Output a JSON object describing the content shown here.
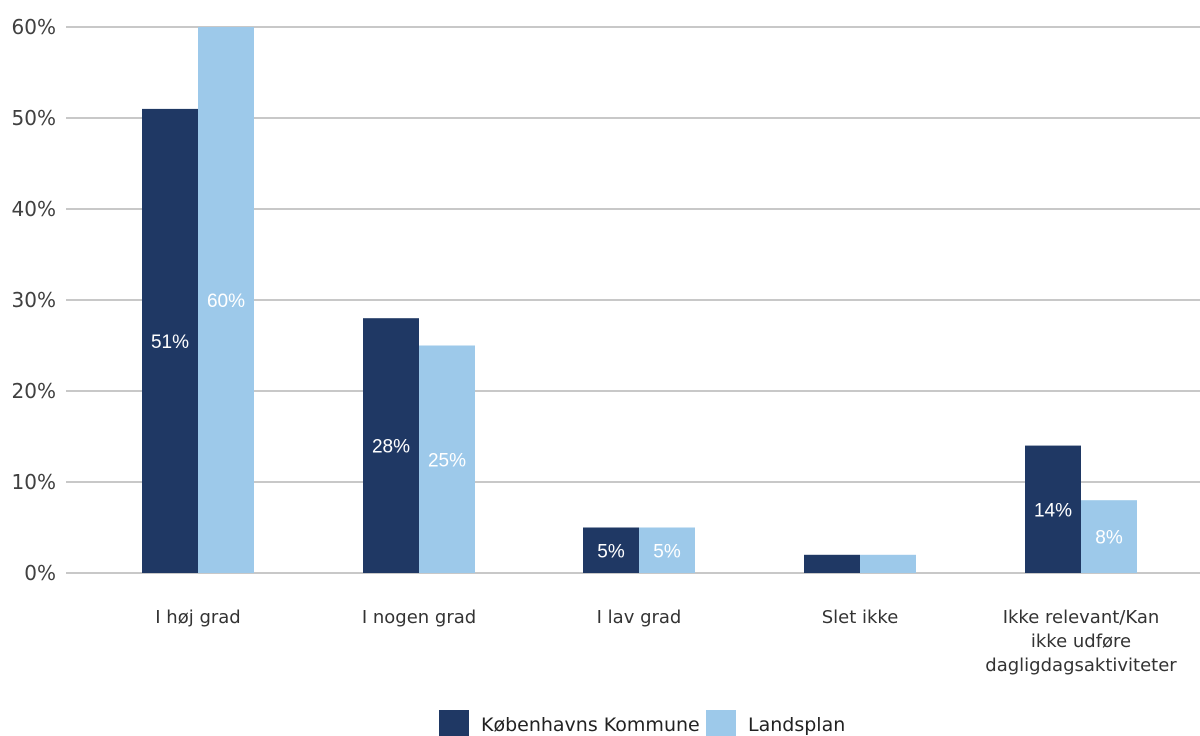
{
  "chart_data": {
    "type": "bar",
    "categories": [
      [
        "I høj grad"
      ],
      [
        "I nogen grad"
      ],
      [
        "I lav grad"
      ],
      [
        "Slet ikke"
      ],
      [
        "Ikke relevant/Kan",
        "ikke udføre",
        "dagligdagsaktiviteter"
      ]
    ],
    "series": [
      {
        "name": "Københavns Kommune",
        "color": "#1f3864",
        "values": [
          51,
          28,
          5,
          2,
          14
        ],
        "labels": [
          "51%",
          "28%",
          "5%",
          "",
          "14%"
        ]
      },
      {
        "name": "Landsplan",
        "color": "#9dc9ea",
        "values": [
          60,
          25,
          5,
          2,
          8
        ],
        "labels": [
          "60%",
          "25%",
          "5%",
          "",
          "8%"
        ]
      }
    ],
    "ylim": [
      0,
      60
    ],
    "yticks": [
      0,
      10,
      20,
      30,
      40,
      50,
      60
    ],
    "ytick_labels": [
      "0%",
      "10%",
      "20%",
      "30%",
      "40%",
      "50%",
      "60%"
    ],
    "grid": true,
    "legend_position": "bottom-center"
  }
}
